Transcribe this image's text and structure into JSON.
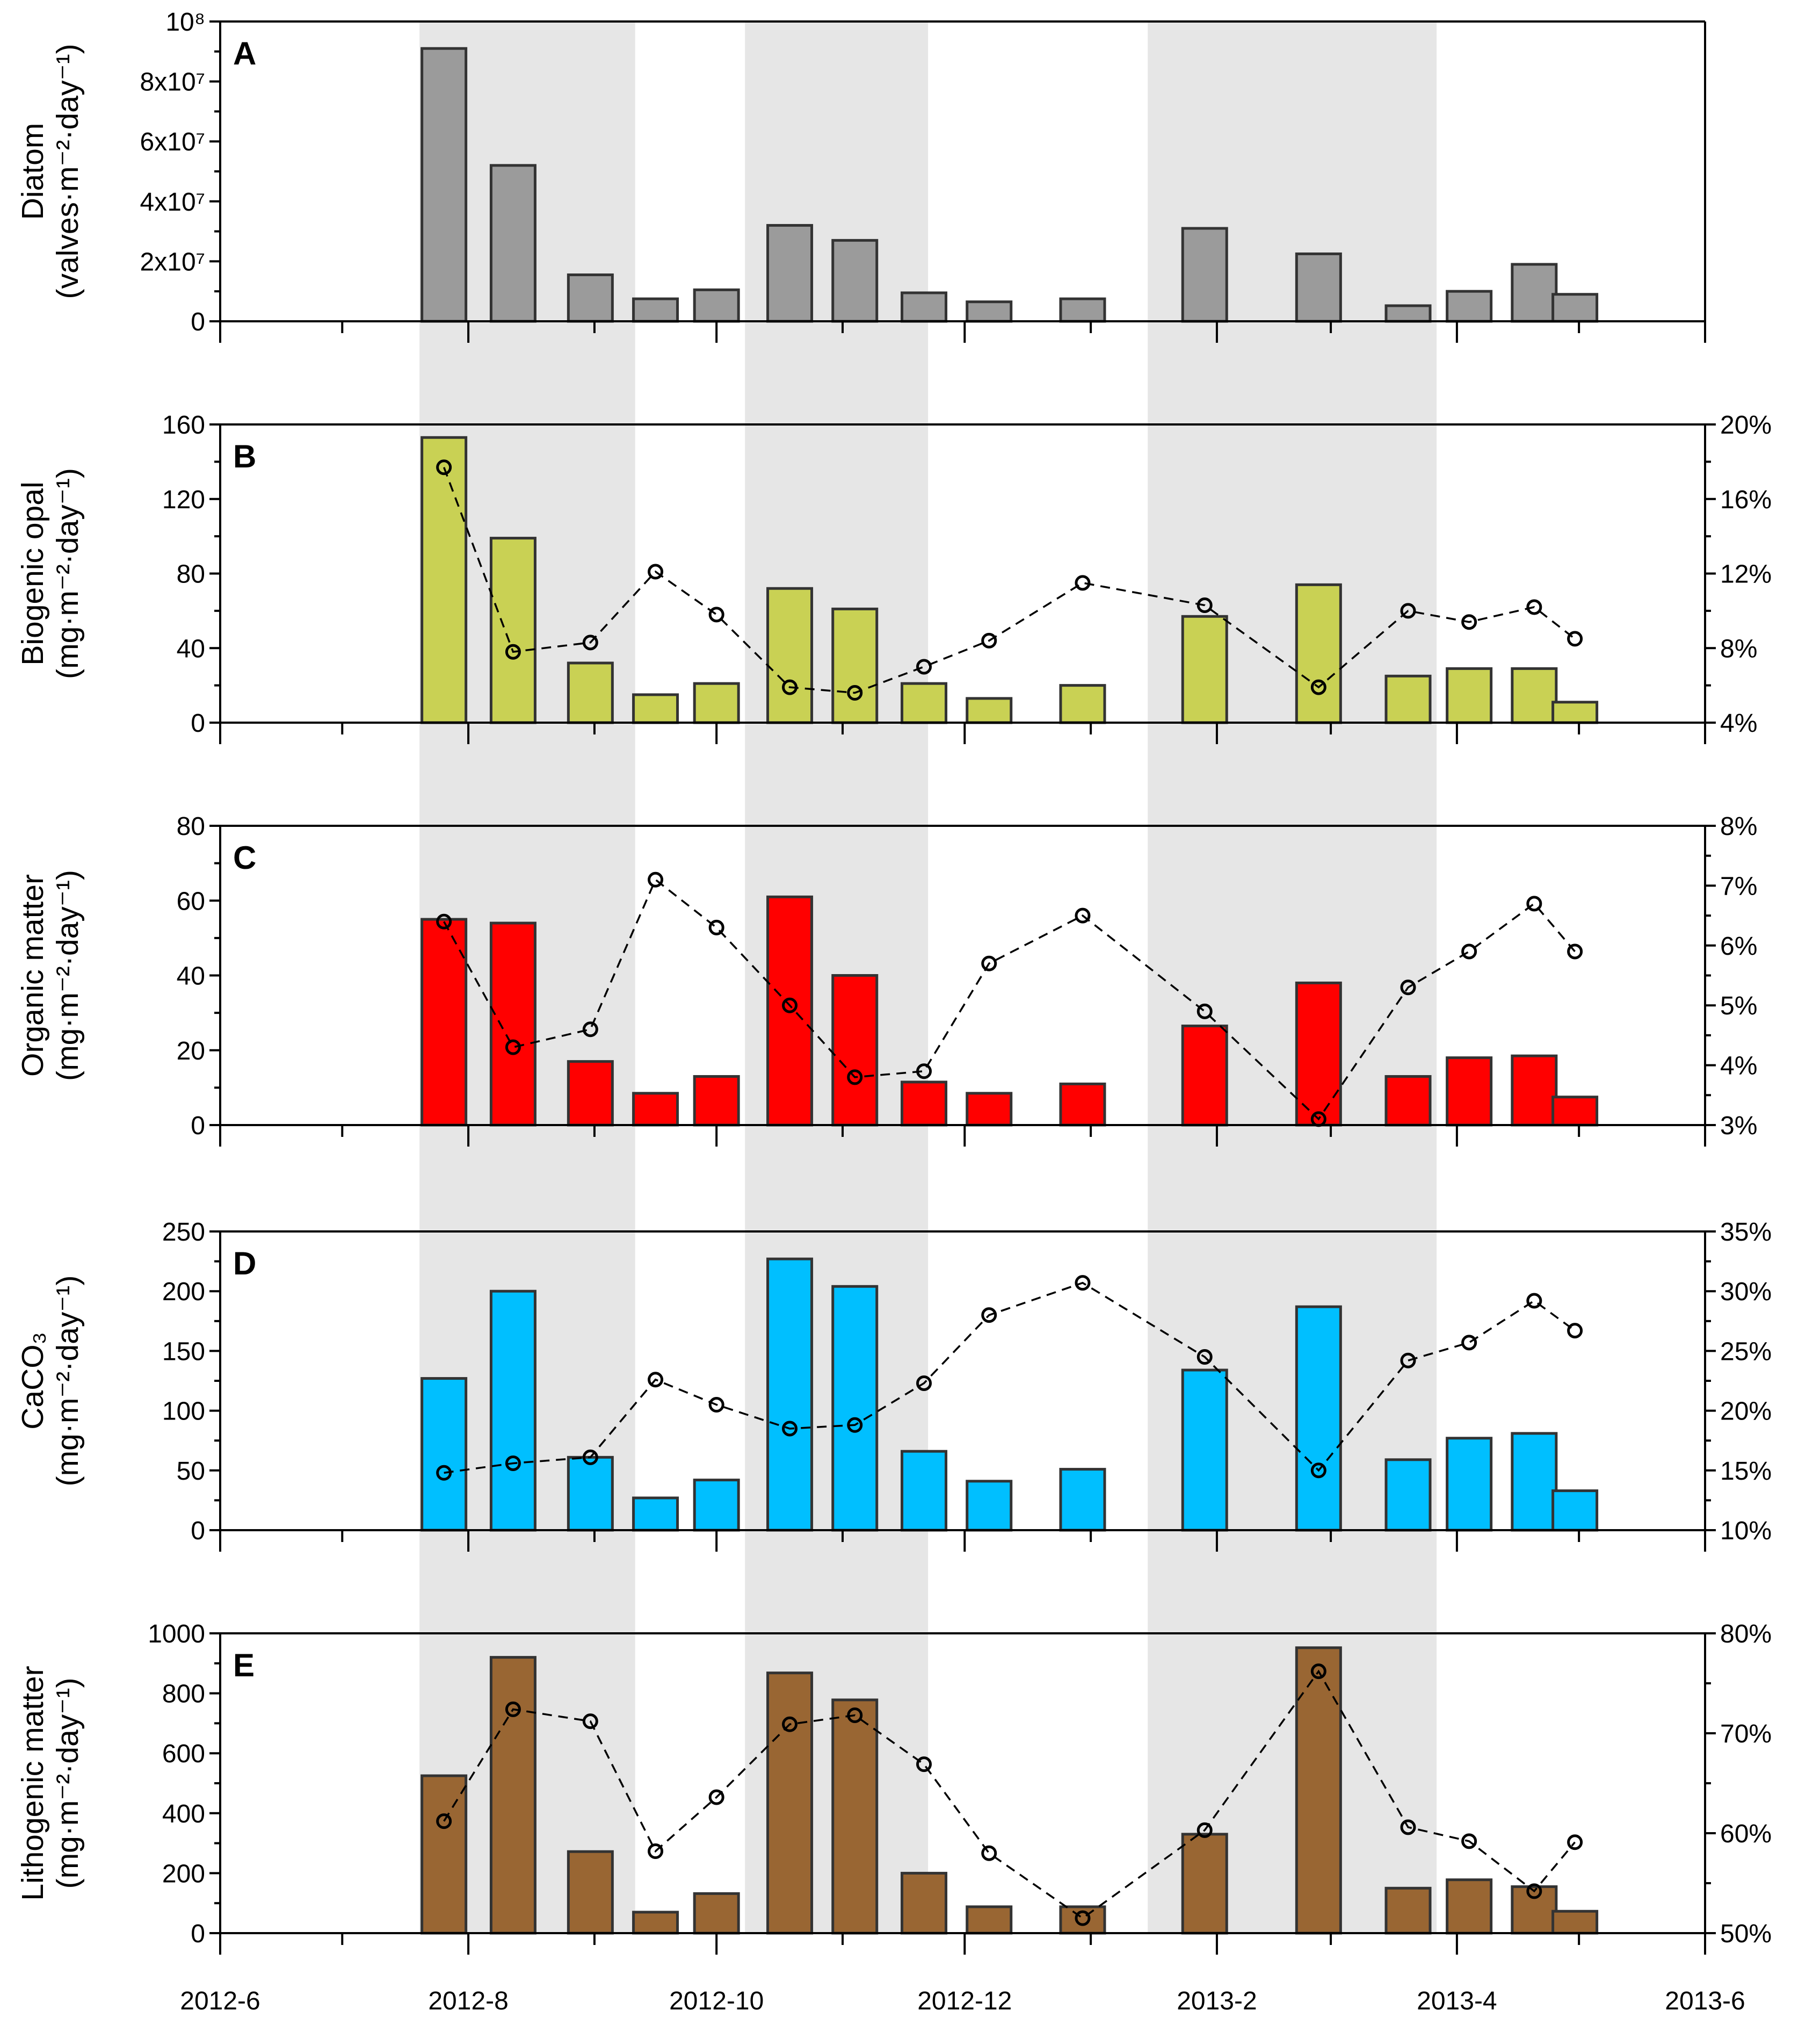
{
  "chart_data": [
    {
      "type": "bar",
      "panel": "A",
      "ylabel_line1": "Diatom",
      "ylabel_line2": "(valves·m⁻²·day⁻¹)",
      "ylim": [
        0,
        100000000
      ],
      "yticks": [
        0,
        20000000,
        40000000,
        60000000,
        80000000,
        100000000
      ],
      "ytick_labels": [
        "0",
        "2x10⁷",
        "4x10⁷",
        "6x10⁷",
        "8x10⁷",
        "10⁸"
      ],
      "x_dates": [
        "2012-07-26",
        "2012-08-12",
        "2012-08-31",
        "2012-09-16",
        "2012-10-01",
        "2012-10-19",
        "2012-11-04",
        "2012-11-21",
        "2012-12-07",
        "2012-12-30",
        "2013-01-29",
        "2013-02-26",
        "2013-03-20",
        "2013-04-04",
        "2013-04-20",
        "2013-04-30"
      ],
      "values": [
        91000000,
        52000000,
        15500000,
        7500000,
        10500000,
        32000000,
        27000000,
        9500000,
        6500000,
        7500000,
        31000000,
        22500000,
        5200000,
        10000000,
        19000000,
        9000000
      ],
      "color": "#9b9b9b"
    },
    {
      "type": "bar+line",
      "panel": "B",
      "ylabel_line1": "Biogenic opal",
      "ylabel_line2": "(mg·m⁻²·day⁻¹)",
      "ylim": [
        0,
        160
      ],
      "yticks": [
        0,
        40,
        80,
        120,
        160
      ],
      "ytick_labels": [
        "0",
        "40",
        "80",
        "120",
        "160"
      ],
      "y2lim": [
        4,
        20
      ],
      "y2ticks": [
        4,
        8,
        12,
        16,
        20
      ],
      "y2tick_labels": [
        "4%",
        "8%",
        "12%",
        "16%",
        "20%"
      ],
      "values": [
        153,
        99,
        32,
        15,
        21,
        72,
        61,
        21,
        13,
        20,
        57,
        74,
        25,
        29,
        29,
        11
      ],
      "percent": [
        17.7,
        7.8,
        8.3,
        12.1,
        9.8,
        5.9,
        5.6,
        7.0,
        8.4,
        11.5,
        10.3,
        5.9,
        10.0,
        9.4,
        10.2,
        8.5
      ],
      "color": "#c9d154"
    },
    {
      "type": "bar+line",
      "panel": "C",
      "ylabel_line1": "Organic matter",
      "ylabel_line2": "(mg·m⁻²·day⁻¹)",
      "ylim": [
        0,
        80
      ],
      "yticks": [
        0,
        20,
        40,
        60,
        80
      ],
      "ytick_labels": [
        "0",
        "20",
        "40",
        "60",
        "80"
      ],
      "y2lim": [
        3,
        8
      ],
      "y2ticks": [
        3,
        4,
        5,
        6,
        7,
        8
      ],
      "y2tick_labels": [
        "3%",
        "4%",
        "5%",
        "6%",
        "7%",
        "8%"
      ],
      "values": [
        55,
        54,
        17,
        8.5,
        13,
        61,
        40,
        11.5,
        8.5,
        11,
        26.5,
        38,
        13,
        18,
        18.5,
        7.5
      ],
      "percent": [
        6.4,
        4.3,
        4.6,
        7.1,
        6.3,
        5.0,
        3.8,
        3.9,
        5.7,
        6.5,
        4.9,
        3.1,
        5.3,
        5.9,
        6.7,
        5.9
      ],
      "color": "#ff0000"
    },
    {
      "type": "bar+line",
      "panel": "D",
      "ylabel_line1": "CaCO₃",
      "ylabel_line2": "(mg·m⁻²·day⁻¹)",
      "ylim": [
        0,
        250
      ],
      "yticks": [
        0,
        50,
        100,
        150,
        200,
        250
      ],
      "ytick_labels": [
        "0",
        "50",
        "100",
        "150",
        "200",
        "250"
      ],
      "y2lim": [
        10,
        35
      ],
      "y2ticks": [
        10,
        15,
        20,
        25,
        30,
        35
      ],
      "y2tick_labels": [
        "10%",
        "15%",
        "20%",
        "25%",
        "30%",
        "35%"
      ],
      "values": [
        127,
        200,
        61,
        27,
        42,
        227,
        204,
        66,
        41,
        51,
        134,
        187,
        59,
        77,
        81,
        33
      ],
      "percent": [
        14.8,
        15.6,
        16.1,
        22.6,
        20.5,
        18.5,
        18.8,
        22.3,
        28.0,
        30.7,
        24.5,
        15.0,
        24.2,
        25.7,
        29.2,
        26.7
      ],
      "color": "#00bfff"
    },
    {
      "type": "bar+line",
      "panel": "E",
      "ylabel_line1": "Lithogenic matter",
      "ylabel_line2": "(mg·m⁻²·day⁻¹)",
      "ylim": [
        0,
        1000
      ],
      "yticks": [
        0,
        200,
        400,
        600,
        800,
        1000
      ],
      "ytick_labels": [
        "0",
        "200",
        "400",
        "600",
        "800",
        "1000"
      ],
      "y2lim": [
        50,
        80
      ],
      "y2ticks": [
        50,
        60,
        70,
        80
      ],
      "y2tick_labels": [
        "50%",
        "60%",
        "70%",
        "80%"
      ],
      "values": [
        525,
        920,
        272,
        70,
        132,
        868,
        778,
        200,
        88,
        88,
        330,
        952,
        150,
        178,
        155,
        73
      ],
      "percent": [
        61.2,
        72.4,
        71.2,
        58.2,
        63.6,
        70.9,
        71.8,
        66.9,
        58.0,
        51.5,
        60.3,
        76.2,
        60.6,
        59.2,
        54.2,
        59.1
      ],
      "color": "#996633"
    }
  ],
  "x_axis": {
    "ticks": [
      "2012-6",
      "2012-8",
      "2012-10",
      "2012-12",
      "2013-2",
      "2013-4",
      "2013-6"
    ],
    "tick_dates": [
      "2012-06-01",
      "2012-08-01",
      "2012-10-01",
      "2012-12-01",
      "2013-02-01",
      "2013-04-01",
      "2013-06-01"
    ],
    "minor_months": [
      "2012-07-01",
      "2012-09-01",
      "2012-11-01",
      "2013-01-01",
      "2013-03-01",
      "2013-05-01"
    ],
    "xlim": [
      "2012-06-01",
      "2013-06-01"
    ]
  },
  "shaded_periods": [
    [
      "2012-07-20",
      "2012-09-11"
    ],
    [
      "2012-10-08",
      "2012-11-22"
    ],
    [
      "2013-01-15",
      "2013-03-27"
    ]
  ],
  "colors": {
    "shade": "#e6e6e6"
  }
}
